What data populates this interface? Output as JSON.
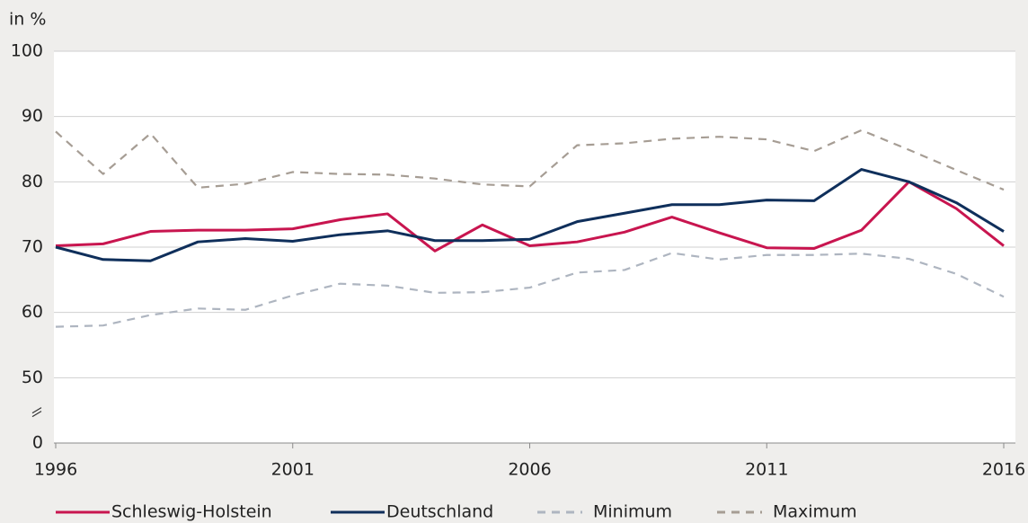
{
  "chart_data": {
    "type": "line",
    "y_label": "in %",
    "x": [
      1996,
      1997,
      1998,
      1999,
      2000,
      2001,
      2002,
      2003,
      2004,
      2005,
      2006,
      2007,
      2008,
      2009,
      2010,
      2011,
      2012,
      2013,
      2014,
      2015,
      2016
    ],
    "xlim": [
      1996,
      2016
    ],
    "xticks": [
      1996,
      2001,
      2006,
      2011,
      2016
    ],
    "ylim": [
      0,
      100
    ],
    "yticks": [
      0,
      50,
      60,
      70,
      80,
      90,
      100
    ],
    "axis_break": true,
    "grid": true,
    "legend": "bottom",
    "series": [
      {
        "name": "Schleswig-Holstein",
        "color": "#c8154f",
        "dash": "solid",
        "values": [
          70.2,
          70.5,
          72.4,
          72.6,
          72.6,
          72.8,
          74.2,
          75.1,
          69.4,
          73.4,
          70.2,
          70.8,
          72.3,
          74.6,
          72.2,
          69.9,
          69.8,
          72.6,
          80.0,
          75.9,
          70.2
        ]
      },
      {
        "name": "Deutschland",
        "color": "#0f2f5b",
        "dash": "solid",
        "values": [
          70.0,
          68.1,
          67.9,
          70.8,
          71.3,
          70.9,
          71.9,
          72.5,
          71.0,
          71.0,
          71.2,
          73.9,
          75.2,
          76.5,
          76.5,
          77.2,
          77.1,
          81.9,
          80.0,
          76.8,
          72.4
        ]
      },
      {
        "name": "Minimum",
        "color": "#aeb5c0",
        "dash": "dashed",
        "values": [
          57.8,
          58.0,
          59.6,
          60.6,
          60.4,
          62.6,
          64.4,
          64.1,
          63.0,
          63.1,
          63.8,
          66.1,
          66.5,
          69.1,
          68.1,
          68.8,
          68.8,
          69.0,
          68.2,
          65.9,
          62.4
        ]
      },
      {
        "name": "Maximum",
        "color": "#a69d94",
        "dash": "dashed",
        "values": [
          87.7,
          81.2,
          87.4,
          79.1,
          79.7,
          81.5,
          81.2,
          81.1,
          80.5,
          79.6,
          79.3,
          85.6,
          85.9,
          86.6,
          86.9,
          86.5,
          84.7,
          87.9,
          84.9,
          81.8,
          78.8
        ]
      }
    ]
  }
}
